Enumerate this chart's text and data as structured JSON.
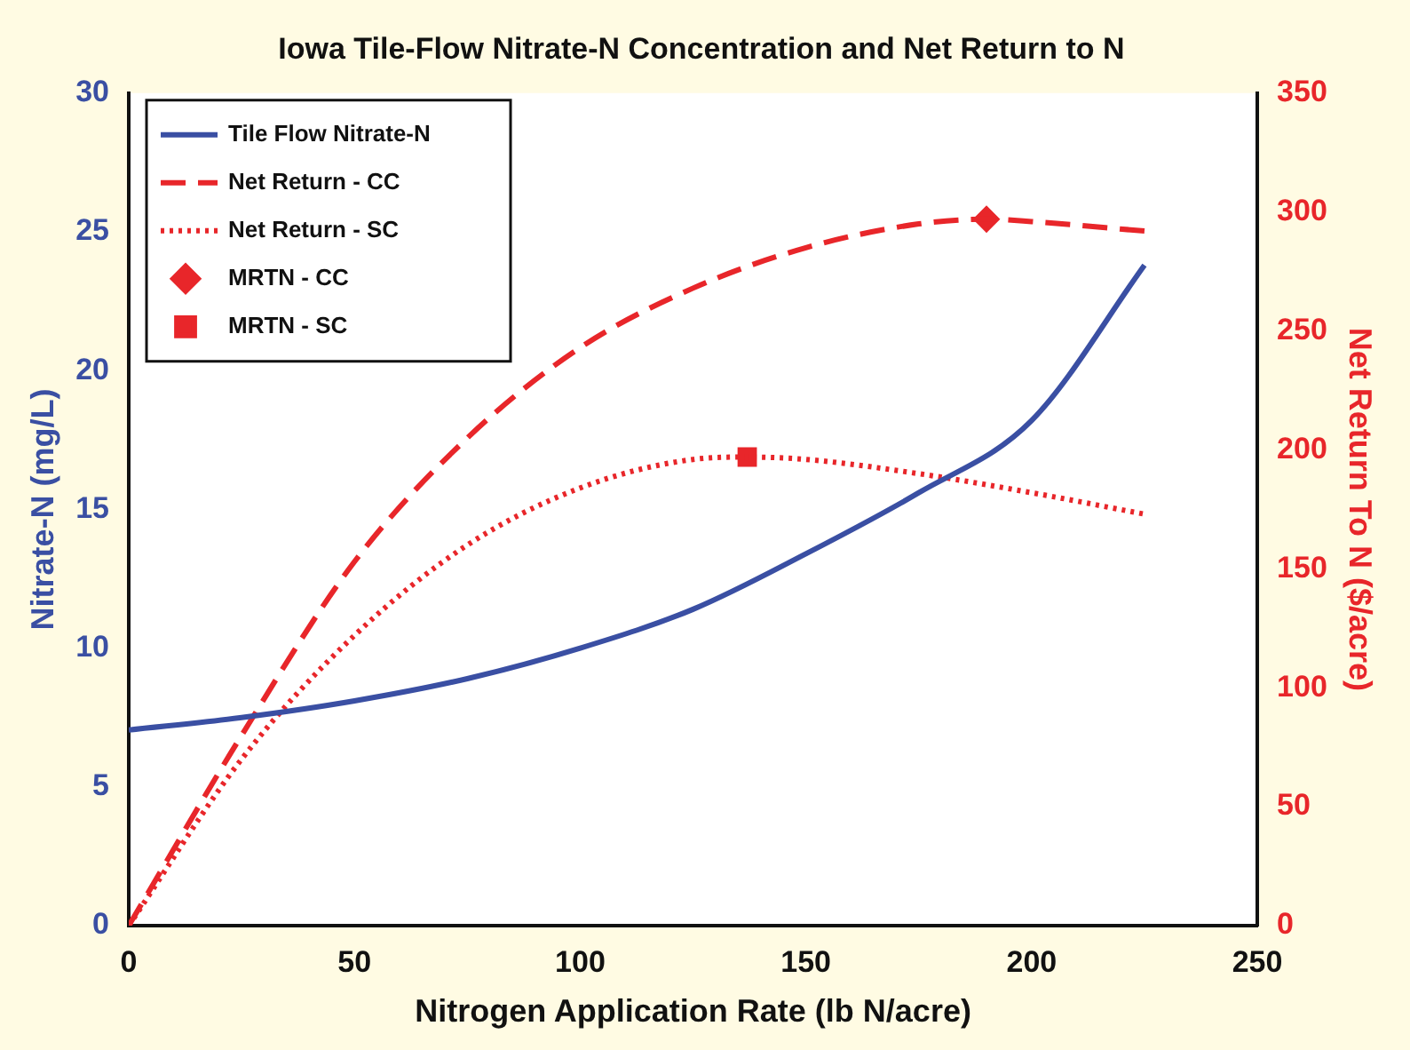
{
  "chart_data": {
    "type": "line",
    "title": "Iowa Tile-Flow Nitrate-N Concentration and Net Return to N",
    "xlabel": "Nitrogen Application Rate (lb N/acre)",
    "ylabel": "Nitrate-N (mg/L)",
    "y2label": "Net Return To N ($/acre)",
    "xlim": [
      0,
      250
    ],
    "xticks": [
      0,
      50,
      100,
      150,
      200,
      250
    ],
    "ylim": [
      0,
      30
    ],
    "yticks": [
      0,
      5,
      10,
      15,
      20,
      25,
      30
    ],
    "y2lim": [
      0,
      350
    ],
    "y2ticks": [
      0,
      50,
      100,
      150,
      200,
      250,
      300,
      350
    ],
    "grid": false,
    "legend": "top left",
    "marker": "none",
    "series": [
      {
        "name": "Tile Flow Nitrate-N",
        "color": "#3a4fa3",
        "line_style": "solid",
        "x": [
          0,
          25,
          50,
          75,
          100,
          125,
          150,
          175,
          200,
          225
        ],
        "values": [
          7.05,
          7.5,
          8.1,
          8.9,
          10.0,
          11.4,
          13.4,
          15.6,
          18.2,
          23.8
        ]
      },
      {
        "name": "Net Return - CC",
        "axis": "y2",
        "color": "#e8262a",
        "line_style": "dashed",
        "x": [
          0,
          25,
          50,
          75,
          100,
          125,
          150,
          175,
          190,
          200,
          225
        ],
        "values": [
          0,
          80,
          153,
          205,
          243,
          268,
          285,
          295,
          297,
          296,
          292
        ]
      },
      {
        "name": "Net Return - SC",
        "axis": "y2",
        "color": "#e8262a",
        "line_style": "dotted",
        "x": [
          0,
          25,
          50,
          75,
          100,
          125,
          137,
          150,
          175,
          200,
          225
        ],
        "values": [
          0,
          70,
          122,
          160,
          184,
          196,
          197,
          196,
          190,
          182,
          173
        ]
      },
      {
        "name": "MRTN - CC",
        "type": "scatter",
        "axis": "y2",
        "color": "#e8262a",
        "marker": "diamond",
        "x": [
          190
        ],
        "values": [
          297
        ]
      },
      {
        "name": "MRTN - SC",
        "type": "scatter",
        "axis": "y2",
        "color": "#e8262a",
        "marker": "square",
        "x": [
          137
        ],
        "values": [
          197
        ]
      }
    ]
  }
}
